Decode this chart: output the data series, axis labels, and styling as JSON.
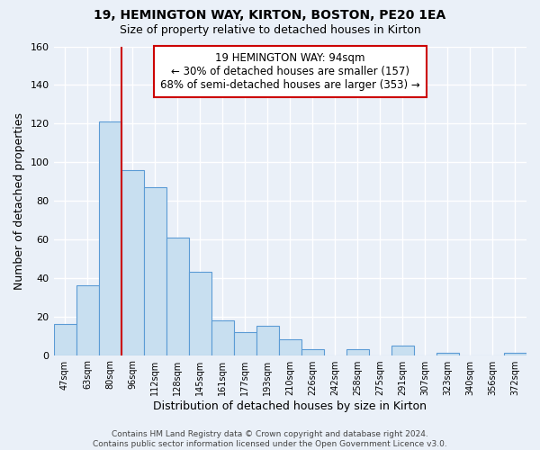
{
  "title": "19, HEMINGTON WAY, KIRTON, BOSTON, PE20 1EA",
  "subtitle": "Size of property relative to detached houses in Kirton",
  "xlabel": "Distribution of detached houses by size in Kirton",
  "ylabel": "Number of detached properties",
  "bar_color": "#c8dff0",
  "bar_edge_color": "#5b9bd5",
  "background_color": "#eaf0f8",
  "grid_color": "#ffffff",
  "bins": [
    "47sqm",
    "63sqm",
    "80sqm",
    "96sqm",
    "112sqm",
    "128sqm",
    "145sqm",
    "161sqm",
    "177sqm",
    "193sqm",
    "210sqm",
    "226sqm",
    "242sqm",
    "258sqm",
    "275sqm",
    "291sqm",
    "307sqm",
    "323sqm",
    "340sqm",
    "356sqm",
    "372sqm"
  ],
  "values": [
    16,
    36,
    121,
    96,
    87,
    61,
    43,
    18,
    12,
    15,
    8,
    3,
    0,
    3,
    0,
    5,
    0,
    1,
    0,
    0,
    1
  ],
  "property_line_color": "#cc0000",
  "annotation_line1": "19 HEMINGTON WAY: 94sqm",
  "annotation_line2": "← 30% of detached houses are smaller (157)",
  "annotation_line3": "68% of semi-detached houses are larger (353) →",
  "annotation_box_color": "#ffffff",
  "annotation_box_edge": "#cc0000",
  "ylim": [
    0,
    160
  ],
  "yticks": [
    0,
    20,
    40,
    60,
    80,
    100,
    120,
    140,
    160
  ],
  "footnote": "Contains HM Land Registry data © Crown copyright and database right 2024.\nContains public sector information licensed under the Open Government Licence v3.0.",
  "fig_width": 6.0,
  "fig_height": 5.0,
  "dpi": 100
}
